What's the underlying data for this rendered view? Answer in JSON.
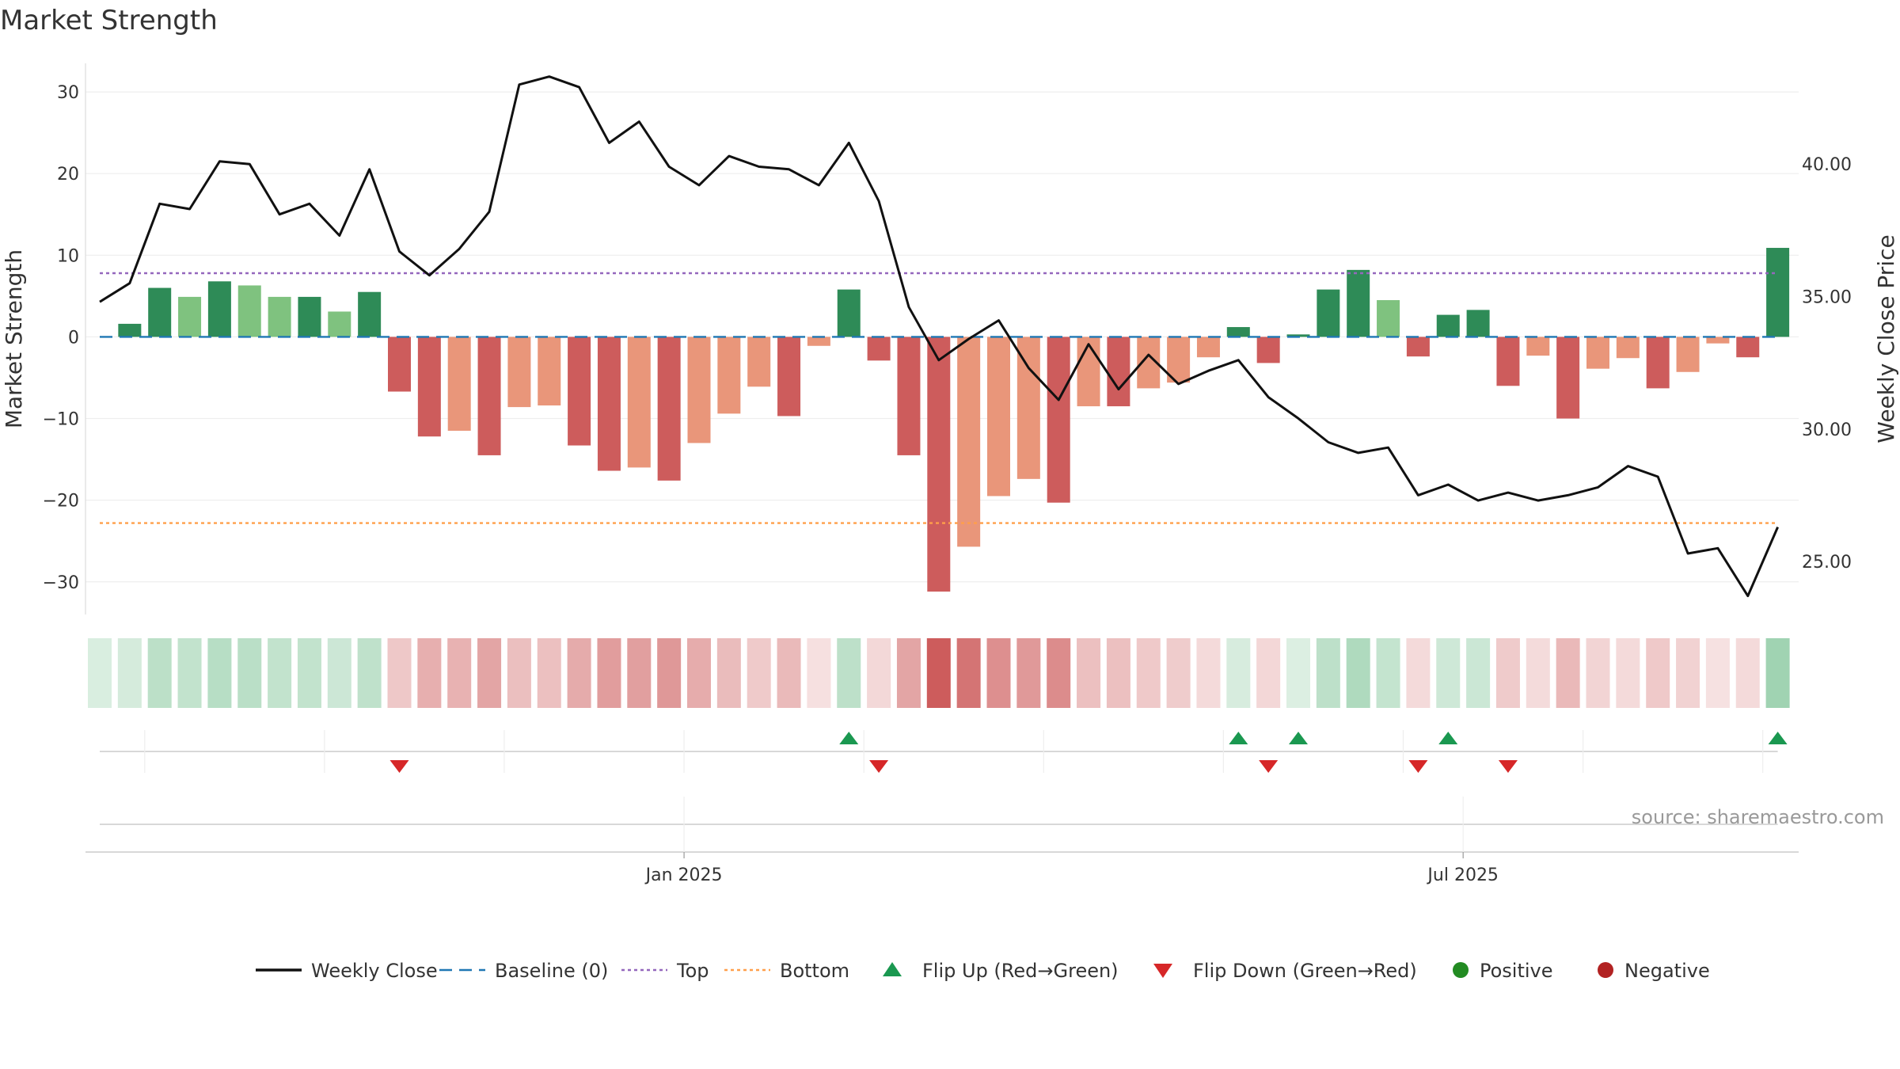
{
  "title": "Market Strength",
  "source": "source: sharemaestro.com",
  "chart_data": {
    "type": "bar",
    "title": "Market Strength",
    "ylabel_left": "Market Strength",
    "ylabel_right": "Weekly Close Price",
    "ylim_left": [
      -34,
      33.5
    ],
    "ylim_right": [
      23.0,
      43.8
    ],
    "yticks_left": [
      "30",
      "20",
      "10",
      "0",
      "−10",
      "−20",
      "−30"
    ],
    "yticks_left_values": [
      30,
      20,
      10,
      0,
      -10,
      -20,
      -30
    ],
    "yticks_right": [
      "40.00",
      "35.00",
      "30.00",
      "25.00"
    ],
    "yticks_right_values": [
      40,
      35,
      30,
      25
    ],
    "x_tick_labels": [
      "Jan 2025",
      "Jul 2025"
    ],
    "x_tick_weeks": [
      19.5,
      45.5
    ],
    "grid": true,
    "top_level": 7.8,
    "bottom_level": -22.8,
    "baseline": 0,
    "strength": [
      0,
      1.6,
      6,
      4.9,
      6.8,
      6.3,
      4.9,
      4.9,
      3.1,
      5.5,
      -6.7,
      -12.2,
      -11.5,
      -14.5,
      -8.6,
      -8.4,
      -13.3,
      -16.4,
      -16,
      -17.6,
      -13,
      -9.4,
      -6.1,
      -9.7,
      -1.1,
      5.8,
      -2.9,
      -14.5,
      -31.2,
      -25.7,
      -19.5,
      -17.4,
      -20.3,
      -8.5,
      -8.5,
      -6.3,
      -5.6,
      -2.5,
      1.2,
      -3.2,
      0.3,
      5.8,
      8.2,
      4.5,
      -2.4,
      2.7,
      3.3,
      -6,
      -2.3,
      -10,
      -3.9,
      -2.6,
      -6.3,
      -4.3,
      -0.8,
      -2.5,
      10.9
    ],
    "strength_shade": [
      "",
      "dark",
      "dark",
      "light",
      "dark",
      "light",
      "light",
      "dark",
      "light",
      "dark",
      "dark",
      "dark",
      "light",
      "dark",
      "light",
      "light",
      "dark",
      "dark",
      "light",
      "dark",
      "light",
      "light",
      "light",
      "dark",
      "light",
      "dark",
      "dark",
      "dark",
      "dark",
      "light",
      "light",
      "light",
      "dark",
      "light",
      "dark",
      "light",
      "light",
      "light",
      "dark",
      "dark",
      "dark",
      "dark",
      "dark",
      "light",
      "dark",
      "dark",
      "dark",
      "dark",
      "light",
      "dark",
      "light",
      "light",
      "dark",
      "light",
      "light",
      "dark",
      "dark"
    ],
    "weekly_close": [
      34.8,
      35.5,
      38.5,
      38.3,
      40.1,
      40.0,
      38.1,
      38.5,
      37.3,
      39.8,
      36.7,
      35.8,
      36.8,
      38.2,
      43.0,
      43.3,
      42.9,
      40.8,
      41.6,
      39.9,
      39.2,
      40.3,
      39.9,
      39.8,
      39.2,
      40.8,
      38.6,
      34.6,
      32.6,
      33.4,
      34.1,
      32.3,
      31.1,
      33.2,
      31.5,
      32.8,
      31.7,
      32.2,
      32.6,
      31.2,
      30.4,
      29.5,
      29.1,
      29.3,
      27.5,
      27.9,
      27.3,
      27.6,
      27.3,
      27.5,
      27.8,
      28.6,
      28.2,
      25.3,
      25.5,
      23.7,
      26.3
    ],
    "flip_up_weeks": [
      25,
      38,
      40,
      45,
      56
    ],
    "flip_down_weeks": [
      10,
      26,
      39,
      44,
      47
    ],
    "colors": {
      "strong_green": "#2e8b57",
      "light_green": "#7fc27f",
      "strong_red": "#cd5c5c",
      "light_red": "#e9967a",
      "line": "#111111",
      "baseline": "#1f77b4",
      "top": "#9467bd",
      "bottom": "#ff9f4a",
      "flip_up": "#1a9850",
      "flip_down": "#d62728",
      "positive": "#228b22",
      "negative": "#b22222"
    },
    "legend": [
      {
        "label": "Weekly Close",
        "kind": "line-solid",
        "color": "#111111"
      },
      {
        "label": "Baseline (0)",
        "kind": "line-dash",
        "color": "#1f77b4"
      },
      {
        "label": "Top",
        "kind": "line-dot",
        "color": "#9467bd"
      },
      {
        "label": "Bottom",
        "kind": "line-dot",
        "color": "#ff9f4a"
      },
      {
        "label": "Flip Up (Red→Green)",
        "kind": "tri-up",
        "color": "#1a9850"
      },
      {
        "label": "Flip Down (Green→Red)",
        "kind": "tri-down",
        "color": "#d62728"
      },
      {
        "label": "Positive",
        "kind": "dot",
        "color": "#228b22"
      },
      {
        "label": "Negative",
        "kind": "dot",
        "color": "#b22222"
      }
    ],
    "legend_placement": "bottom-center"
  }
}
